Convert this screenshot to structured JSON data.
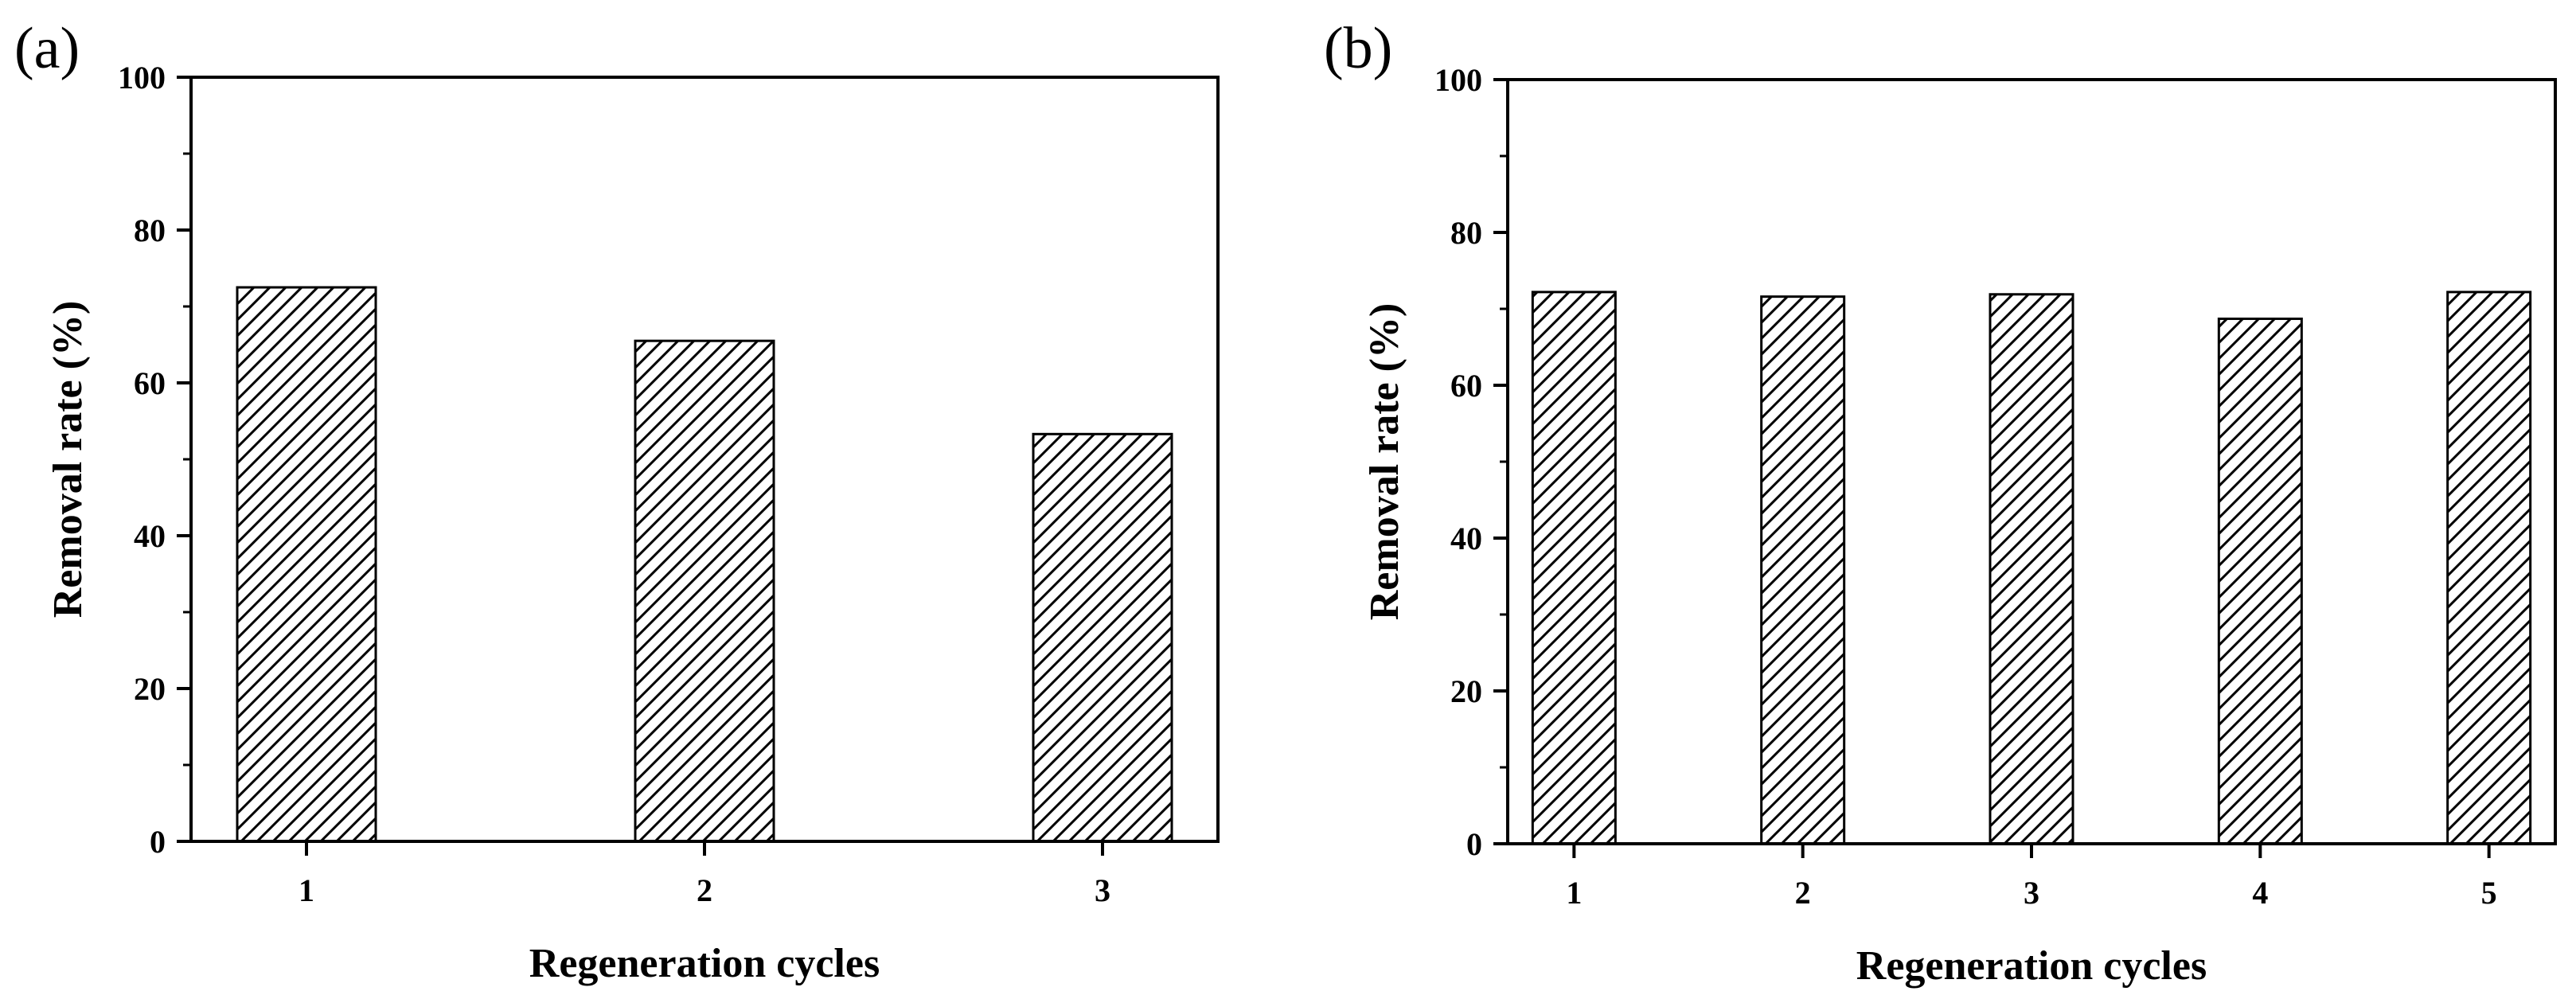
{
  "chart_data": [
    {
      "type": "bar",
      "panel_label": "(a)",
      "categories": [
        "1",
        "2",
        "3"
      ],
      "values": [
        72.5,
        65.5,
        53.3
      ],
      "xlabel": "Regeneration cycles",
      "ylabel": "Removal rate (%)",
      "ylim": [
        0,
        100
      ],
      "yticks": [
        "0",
        "20",
        "40",
        "60",
        "80",
        "100"
      ],
      "bar_fill": "hatched-diagonal",
      "bar_color": "#000000",
      "grid": false
    },
    {
      "type": "bar",
      "panel_label": "(b)",
      "categories": [
        "1",
        "2",
        "3",
        "4",
        "5"
      ],
      "values": [
        72.2,
        71.6,
        71.9,
        68.7,
        72.2
      ],
      "xlabel": "Regeneration cycles",
      "ylabel": "Removal rate (%)",
      "ylim": [
        0,
        100
      ],
      "yticks": [
        "0",
        "20",
        "40",
        "60",
        "80",
        "100"
      ],
      "bar_fill": "hatched-diagonal",
      "bar_color": "#000000",
      "grid": false
    }
  ]
}
